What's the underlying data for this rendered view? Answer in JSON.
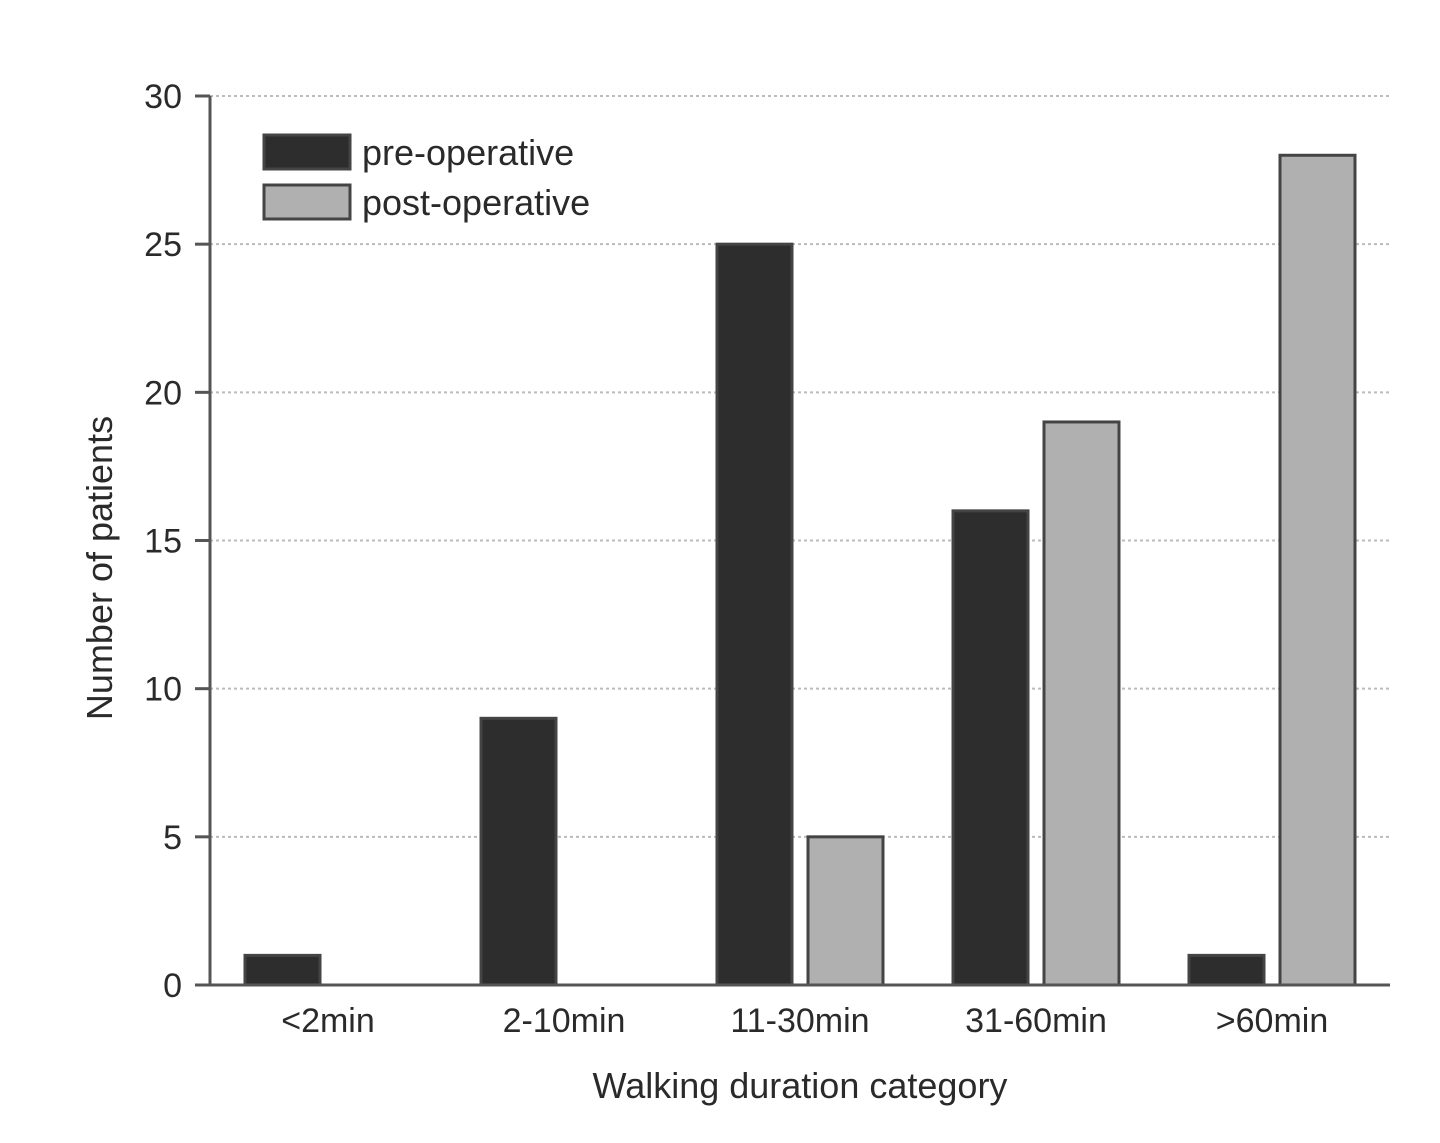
{
  "chart_data": {
    "type": "bar",
    "title": "",
    "xlabel": "Walking duration category",
    "ylabel": "Number of patients",
    "categories": [
      "<2min",
      "2-10min",
      "11-30min",
      "31-60min",
      ">60min"
    ],
    "series": [
      {
        "name": "pre-operative",
        "color": "#2d2d2d",
        "values": [
          1,
          9,
          25,
          16,
          1
        ]
      },
      {
        "name": "post-operative",
        "color": "#b0b0b0",
        "values": [
          0,
          0,
          5,
          19,
          28
        ]
      }
    ],
    "ylim": [
      0,
      30
    ],
    "yticks": [
      0,
      5,
      10,
      15,
      20,
      25,
      30
    ],
    "grid": true,
    "legend_position": "upper-left"
  }
}
